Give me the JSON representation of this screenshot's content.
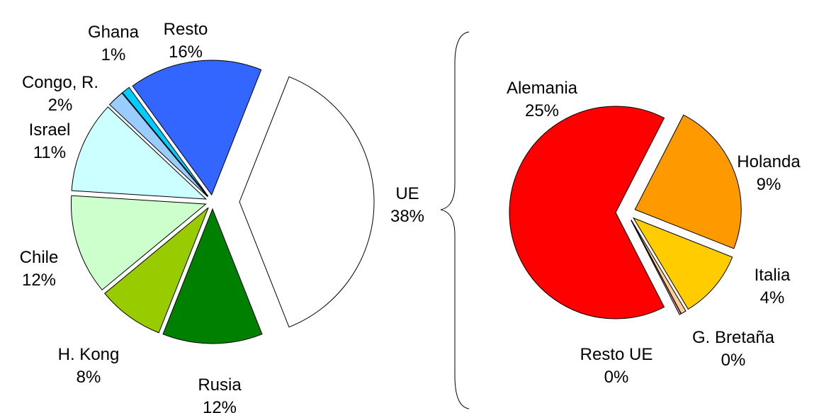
{
  "chart_data": [
    {
      "type": "pie",
      "categories": [
        "UE",
        "Rusia",
        "H. Kong",
        "Chile",
        "Israel",
        "Congo, R.",
        "Ghana",
        "Resto"
      ],
      "values": [
        38,
        12,
        8,
        12,
        11,
        2,
        1,
        16
      ],
      "value_labels": [
        "38%",
        "12%",
        "8%",
        "12%",
        "11%",
        "2%",
        "1%",
        "16%"
      ],
      "colors": [
        "#ffffff",
        "#008000",
        "#99cc00",
        "#ccffcc",
        "#ccffff",
        "#99ccff",
        "#00ccff",
        "#3366ff"
      ]
    },
    {
      "type": "pie",
      "categories": [
        "Alemania",
        "Holanda",
        "Italia",
        "G. Bretaña",
        "Resto UE"
      ],
      "values": [
        25,
        9,
        4,
        0.3,
        0.1
      ],
      "value_labels": [
        "25%",
        "9%",
        "4%",
        "0%",
        "0%"
      ],
      "colors": [
        "#ff0000",
        "#ff9900",
        "#ffcc00",
        "#ffcc99",
        "#ff9999"
      ]
    }
  ]
}
